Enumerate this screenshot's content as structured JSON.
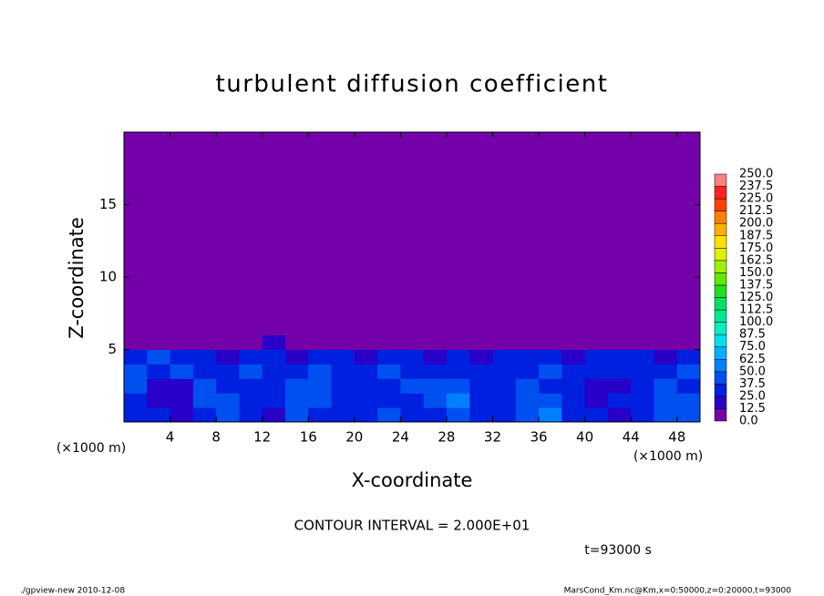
{
  "chart_data": {
    "type": "heatmap",
    "title": "turbulent diffusion coefficient",
    "x_label": "X-coordinate",
    "y_label": "Z-coordinate",
    "x_unit": "(×1000 m)",
    "contour_text": "CONTOUR INTERVAL = 2.000E+01",
    "time_text": "t=93000 s",
    "footer_left": "./gpview-new   2010-12-08",
    "footer_right": "MarsCond_Km.nc@Km,x=0:50000,z=0:20000,t=93000",
    "xlim": [
      0,
      50
    ],
    "ylim": [
      0,
      20
    ],
    "xticks": [
      4,
      8,
      12,
      16,
      20,
      24,
      28,
      32,
      36,
      40,
      44,
      48
    ],
    "yticks": [
      5,
      10,
      15
    ],
    "x": [
      0,
      2,
      4,
      6,
      8,
      10,
      12,
      14,
      16,
      18,
      20,
      22,
      24,
      26,
      28,
      30,
      32,
      34,
      36,
      38,
      40,
      42,
      44,
      46,
      48,
      50
    ],
    "z": [
      0,
      1,
      2,
      3,
      4,
      5,
      6,
      20
    ],
    "values": [
      [
        30,
        25,
        20,
        35,
        45,
        30,
        20,
        40,
        35,
        25,
        30,
        40,
        30,
        35,
        45,
        30,
        25,
        40,
        50,
        30,
        35,
        20,
        30,
        40,
        45
      ],
      [
        35,
        20,
        15,
        40,
        40,
        35,
        30,
        45,
        40,
        30,
        35,
        30,
        35,
        40,
        50,
        35,
        30,
        45,
        40,
        25,
        20,
        25,
        35,
        45,
        40
      ],
      [
        40,
        15,
        20,
        45,
        35,
        30,
        35,
        40,
        45,
        35,
        30,
        35,
        40,
        45,
        40,
        30,
        35,
        40,
        35,
        30,
        15,
        20,
        30,
        40,
        35
      ],
      [
        45,
        35,
        40,
        35,
        30,
        40,
        30,
        35,
        40,
        30,
        35,
        40,
        35,
        30,
        35,
        25,
        30,
        35,
        40,
        35,
        30,
        25,
        35,
        30,
        40
      ],
      [
        30,
        40,
        30,
        25,
        20,
        35,
        25,
        20,
        25,
        30,
        20,
        25,
        30,
        20,
        25,
        20,
        25,
        30,
        25,
        20,
        25,
        30,
        25,
        20,
        30
      ],
      [
        10,
        10,
        8,
        5,
        5,
        12,
        15,
        5,
        3,
        2,
        5,
        3,
        12,
        10,
        8,
        2,
        3,
        2,
        5,
        2,
        3,
        4,
        12,
        8,
        5
      ],
      [
        0,
        0,
        0,
        0,
        0,
        0,
        0,
        0,
        0,
        0,
        0,
        0,
        0,
        0,
        0,
        0,
        0,
        0,
        0,
        0,
        0,
        0,
        0,
        0,
        0
      ]
    ],
    "levels": [
      {
        "value": 0,
        "label": "0.0"
      },
      {
        "value": 12.5,
        "label": "12.5"
      },
      {
        "value": 25,
        "label": "25.0"
      },
      {
        "value": 37.5,
        "label": "37.5"
      },
      {
        "value": 50,
        "label": "50.0"
      },
      {
        "value": 62.5,
        "label": "62.5"
      },
      {
        "value": 75,
        "label": "75.0"
      },
      {
        "value": 87.5,
        "label": "87.5"
      },
      {
        "value": 100,
        "label": "100.0"
      },
      {
        "value": 112.5,
        "label": "112.5"
      },
      {
        "value": 125,
        "label": "125.0"
      },
      {
        "value": 137.5,
        "label": "137.5"
      },
      {
        "value": 150,
        "label": "150.0"
      },
      {
        "value": 162.5,
        "label": "162.5"
      },
      {
        "value": 175,
        "label": "175.0"
      },
      {
        "value": 187.5,
        "label": "187.5"
      },
      {
        "value": 200,
        "label": "200.0"
      },
      {
        "value": 212.5,
        "label": "212.5"
      },
      {
        "value": 225,
        "label": "225.0"
      },
      {
        "value": 237.5,
        "label": "237.5"
      },
      {
        "value": 250,
        "label": "250.0"
      }
    ],
    "colors": [
      "#7400aa",
      "#2800c8",
      "#0020e0",
      "#0050f0",
      "#0080ff",
      "#00b0ff",
      "#00e0f0",
      "#00f0c0",
      "#00e890",
      "#00e060",
      "#20e020",
      "#60e800",
      "#a0f000",
      "#e0f000",
      "#ffe000",
      "#ffb000",
      "#ff8000",
      "#ff4000",
      "#ff2020",
      "#ff8080"
    ]
  }
}
